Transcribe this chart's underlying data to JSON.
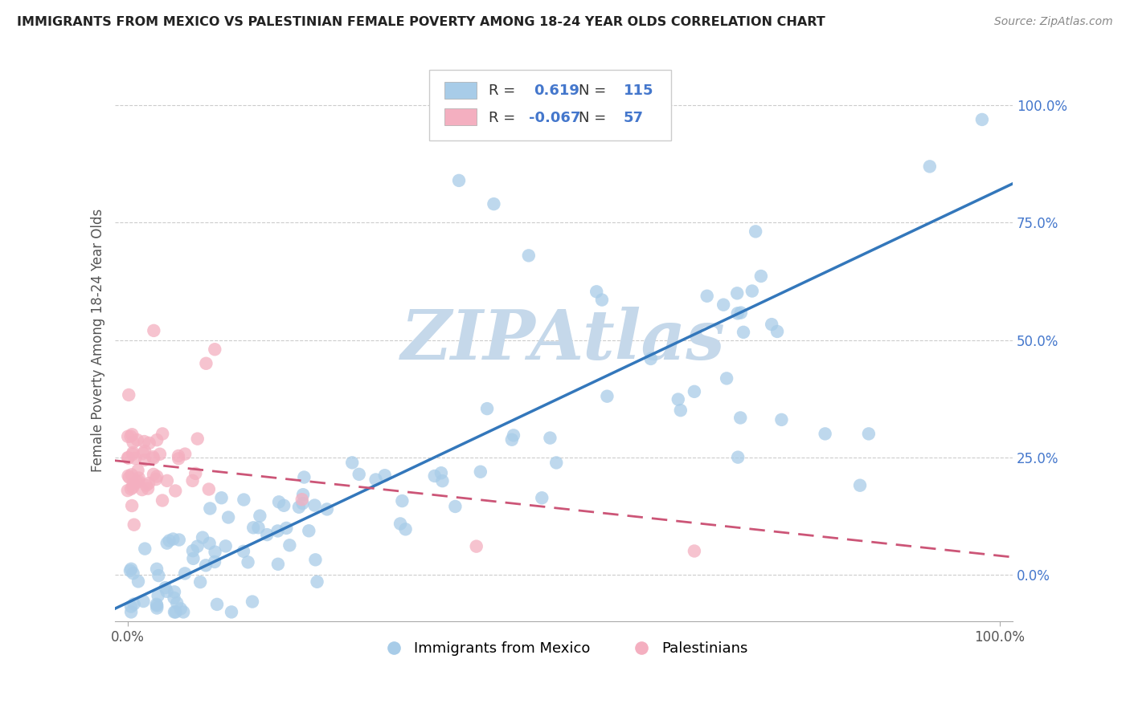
{
  "title": "IMMIGRANTS FROM MEXICO VS PALESTINIAN FEMALE POVERTY AMONG 18-24 YEAR OLDS CORRELATION CHART",
  "source": "Source: ZipAtlas.com",
  "ylabel": "Female Poverty Among 18-24 Year Olds",
  "legend_label_blue": "Immigrants from Mexico",
  "legend_label_pink": "Palestinians",
  "blue_color": "#a8cce8",
  "pink_color": "#f4afc0",
  "blue_line_color": "#3377bb",
  "pink_line_color": "#cc5577",
  "watermark": "ZIPAtlas",
  "watermark_color": "#c5d8ea",
  "r_text_color": "#4477cc",
  "n_text_color": "#4477cc",
  "blue_r_text": "0.619",
  "blue_n_text": "115",
  "pink_r_text": "-0.067",
  "pink_n_text": "57",
  "blue_n": 115,
  "pink_n": 57,
  "blue_r": 0.619,
  "pink_r": -0.067,
  "blue_slope": 0.88,
  "blue_intercept": -0.06,
  "pink_slope": -0.2,
  "pink_intercept": 0.24,
  "xlim": [
    -0.015,
    1.015
  ],
  "ylim": [
    -0.1,
    1.1
  ],
  "yticks": [
    0.0,
    0.25,
    0.5,
    0.75,
    1.0
  ],
  "yticklabels": [
    "0.0%",
    "25.0%",
    "50.0%",
    "75.0%",
    "100.0%"
  ],
  "xticks": [
    0.0,
    1.0
  ],
  "xticklabels": [
    "0.0%",
    "100.0%"
  ]
}
